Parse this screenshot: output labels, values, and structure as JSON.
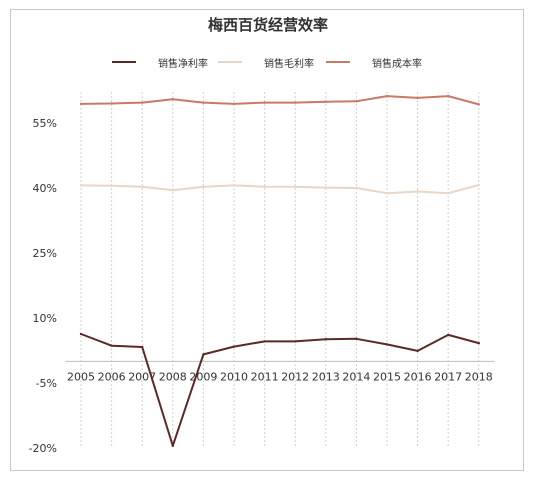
{
  "chart_data": {
    "type": "line",
    "title": "梅西百货经营效率",
    "x": [
      "2005",
      "2006",
      "2007",
      "2008",
      "2009",
      "2010",
      "2011",
      "2012",
      "2013",
      "2014",
      "2015",
      "2016",
      "2017",
      "2018"
    ],
    "ylim": [
      -20,
      70
    ],
    "yticks": [
      {
        "value": 55,
        "label": "55%"
      },
      {
        "value": 40,
        "label": "40%"
      },
      {
        "value": 25,
        "label": "25%"
      },
      {
        "value": 10,
        "label": "10%"
      },
      {
        "value": -5,
        "label": "-5%"
      },
      {
        "value": -20,
        "label": "-20%"
      }
    ],
    "grid": "vertical",
    "legend": "top",
    "series": [
      {
        "name": "销售净利率",
        "color": "#5c2a25",
        "values": [
          6.3,
          3.6,
          3.3,
          -19.5,
          1.6,
          3.4,
          4.6,
          4.6,
          5.1,
          5.2,
          3.9,
          2.4,
          6.1,
          4.2
        ]
      },
      {
        "name": "销售毛利率",
        "color": "#e8d6c6",
        "values": [
          40.6,
          40.5,
          40.3,
          39.5,
          40.3,
          40.6,
          40.3,
          40.3,
          40.1,
          40.0,
          38.8,
          39.2,
          38.8,
          40.7
        ]
      },
      {
        "name": "销售成本率",
        "color": "#c97a66",
        "values": [
          59.4,
          59.5,
          59.7,
          60.5,
          59.7,
          59.4,
          59.7,
          59.7,
          59.9,
          60.0,
          61.2,
          60.8,
          61.2,
          59.3
        ]
      }
    ]
  }
}
